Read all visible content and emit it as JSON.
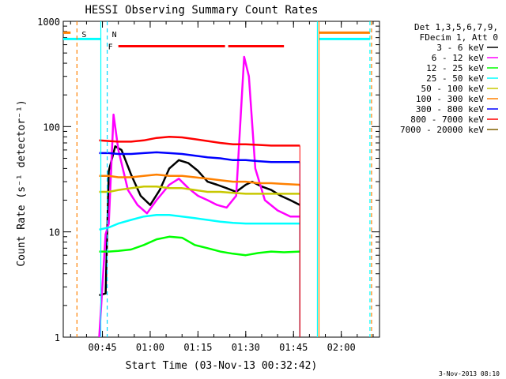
{
  "chart_data": {
    "type": "line",
    "title": "HESSI Observing Summary Count Rates",
    "xlabel": "Start Time (03-Nov-13 00:32:42)",
    "ylabel": "Count Rate (s⁻¹ detector⁻¹)",
    "xlim": [
      "00:32:42",
      "02:12:00"
    ],
    "x_scale": "time",
    "ylim": [
      1,
      1000
    ],
    "y_scale": "log",
    "x_ticks": [
      "00:45",
      "01:00",
      "01:15",
      "01:30",
      "01:45",
      "02:00"
    ],
    "y_ticks": [
      "1",
      "10",
      "100",
      "1000"
    ],
    "legend_header": [
      "Det 1,3,5,6,7,9,",
      "FDecim 1, Att 0"
    ],
    "legend_position": "right",
    "footer": "3-Nov-2013 08:10",
    "series": [
      {
        "name": "3 - 6 keV",
        "color": "#000000",
        "x": [
          "00:44:00",
          "00:46:00",
          "00:47:00",
          "00:49:00",
          "00:51:00",
          "00:54:00",
          "00:57:00",
          "01:00:00",
          "01:03:00",
          "01:06:00",
          "01:09:00",
          "01:12:00",
          "01:15:00",
          "01:18:00",
          "01:21:00",
          "01:24:00",
          "01:27:00",
          "01:30:00",
          "01:32:00",
          "01:35:00",
          "01:38:00",
          "01:41:00",
          "01:44:00",
          "01:47:00"
        ],
        "y": [
          2.5,
          2.6,
          38,
          65,
          60,
          35,
          22,
          18,
          25,
          40,
          48,
          45,
          38,
          30,
          28,
          26,
          24,
          28,
          30,
          27,
          25,
          22,
          20,
          18
        ]
      },
      {
        "name": "6 - 12 keV",
        "color": "#ff00ff",
        "x": [
          "00:44:00",
          "00:46:00",
          "00:47:00",
          "00:48:30",
          "00:50:00",
          "00:53:00",
          "00:56:00",
          "00:59:00",
          "01:02:00",
          "01:06:00",
          "01:09:00",
          "01:12:00",
          "01:15:00",
          "01:18:00",
          "01:21:00",
          "01:24:00",
          "01:27:00",
          "01:28:30",
          "01:29:30",
          "01:31:00",
          "01:33:00",
          "01:36:00",
          "01:40:00",
          "01:44:00",
          "01:47:00"
        ],
        "y": [
          1,
          9.5,
          12,
          130,
          60,
          25,
          18,
          15,
          20,
          28,
          32,
          26,
          22,
          20,
          18,
          17,
          22,
          140,
          460,
          300,
          40,
          20,
          16,
          14,
          14
        ]
      },
      {
        "name": "12 - 25 keV",
        "color": "#00ff00",
        "x": [
          "00:44:00",
          "00:47:00",
          "00:50:00",
          "00:54:00",
          "00:58:00",
          "01:02:00",
          "01:06:00",
          "01:10:00",
          "01:14:00",
          "01:18:00",
          "01:22:00",
          "01:26:00",
          "01:30:00",
          "01:34:00",
          "01:38:00",
          "01:42:00",
          "01:47:00"
        ],
        "y": [
          6.5,
          6.5,
          6.6,
          6.8,
          7.5,
          8.5,
          9,
          8.8,
          7.5,
          7,
          6.5,
          6.2,
          6,
          6.3,
          6.5,
          6.4,
          6.5
        ]
      },
      {
        "name": "25 - 50 keV",
        "color": "#00ffff",
        "x": [
          "00:44:00",
          "00:47:00",
          "00:50:00",
          "00:54:00",
          "00:58:00",
          "01:02:00",
          "01:06:00",
          "01:10:00",
          "01:14:00",
          "01:18:00",
          "01:22:00",
          "01:26:00",
          "01:30:00",
          "01:34:00",
          "01:38:00",
          "01:42:00",
          "01:47:00"
        ],
        "y": [
          10.5,
          11,
          12,
          13,
          14,
          14.5,
          14.5,
          14,
          13.5,
          13,
          12.5,
          12.2,
          12,
          12,
          12,
          12,
          12
        ]
      },
      {
        "name": "50 - 100 keV",
        "color": "#c8c800",
        "x": [
          "00:44:00",
          "00:47:00",
          "00:50:00",
          "00:54:00",
          "00:58:00",
          "01:02:00",
          "01:06:00",
          "01:10:00",
          "01:14:00",
          "01:18:00",
          "01:22:00",
          "01:26:00",
          "01:30:00",
          "01:34:00",
          "01:38:00",
          "01:42:00",
          "01:47:00"
        ],
        "y": [
          24,
          24,
          25,
          26,
          27,
          27,
          26,
          26,
          25,
          24,
          24,
          23.5,
          23,
          23,
          23,
          23,
          23
        ]
      },
      {
        "name": "100 - 300 keV",
        "color": "#ff8000",
        "x": [
          "00:44:00",
          "00:47:00",
          "00:50:00",
          "00:54:00",
          "00:58:00",
          "01:02:00",
          "01:06:00",
          "01:10:00",
          "01:14:00",
          "01:18:00",
          "01:22:00",
          "01:26:00",
          "01:30:00",
          "01:34:00",
          "01:38:00",
          "01:42:00",
          "01:47:00"
        ],
        "y": [
          34,
          34,
          33,
          33,
          34,
          35,
          34,
          34,
          33,
          32,
          31,
          30,
          30,
          29,
          29,
          28.5,
          28
        ]
      },
      {
        "name": "300 - 800 keV",
        "color": "#0000ff",
        "x": [
          "00:44:00",
          "00:47:00",
          "00:50:00",
          "00:54:00",
          "00:58:00",
          "01:02:00",
          "01:06:00",
          "01:10:00",
          "01:14:00",
          "01:18:00",
          "01:22:00",
          "01:26:00",
          "01:30:00",
          "01:34:00",
          "01:38:00",
          "01:42:00",
          "01:47:00"
        ],
        "y": [
          56,
          56,
          55,
          55,
          56,
          57,
          56,
          55,
          53,
          51,
          50,
          48,
          48,
          47,
          46,
          46,
          46
        ]
      },
      {
        "name": "800 - 7000 keV",
        "color": "#ff0000",
        "x": [
          "00:44:00",
          "00:47:00",
          "00:50:00",
          "00:54:00",
          "00:58:00",
          "01:02:00",
          "01:06:00",
          "01:10:00",
          "01:14:00",
          "01:18:00",
          "01:22:00",
          "01:26:00",
          "01:30:00",
          "01:34:00",
          "01:38:00",
          "01:42:00",
          "01:47:00"
        ],
        "y": [
          74,
          73,
          72,
          72,
          74,
          78,
          80,
          79,
          76,
          73,
          70,
          68,
          68,
          67,
          66,
          66,
          66
        ]
      },
      {
        "name": "7000 - 20000 keV",
        "color": "#806000",
        "x": [],
        "y": []
      }
    ],
    "markers": [
      {
        "label": "S",
        "color": "#ff8000",
        "style": "dashed-line",
        "x": "00:37:00"
      },
      {
        "label": "N",
        "color": "#00d8ff",
        "style": "dashed-line",
        "x": "00:46:30"
      },
      {
        "label": "",
        "color": "#00ffff",
        "style": "solid-line",
        "x": "00:44:30"
      },
      {
        "label": "",
        "color": "#00ffff",
        "style": "solid-line",
        "x": "01:52:30"
      },
      {
        "label": "",
        "color": "#ff8000",
        "style": "solid-line",
        "x": "01:53:00"
      },
      {
        "label": "",
        "color": "#00ffff",
        "style": "dashed-line",
        "x": "02:09:00"
      },
      {
        "label": "",
        "color": "#ff8000",
        "style": "dashed-line",
        "x": "02:09:30"
      }
    ],
    "flags": [
      {
        "label": "F",
        "color": "#ff0000",
        "segments": [
          [
            "00:50:00",
            "01:23:30"
          ],
          [
            "01:24:30",
            "01:42:00"
          ]
        ]
      }
    ],
    "bands": [
      {
        "color": "#00ffff",
        "segments": [
          [
            "00:32:42",
            "00:44:30"
          ],
          [
            "01:53:00",
            "02:09:00"
          ]
        ],
        "level": 680
      },
      {
        "color": "#ff8000",
        "segments": [
          [
            "00:32:42",
            "00:35:00"
          ],
          [
            "01:53:00",
            "02:09:00"
          ]
        ],
        "level": 780
      }
    ]
  }
}
